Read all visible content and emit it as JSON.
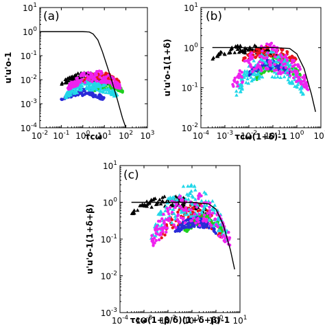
{
  "colors": {
    "black": "#000000",
    "red": "#e8141b",
    "green": "#1fcf1f",
    "blue": "#2a2ad8",
    "cyan": "#22d7e8",
    "magenta": "#ee22ee"
  },
  "chart_data": [
    {
      "type": "scatter",
      "panel_label": "(a)",
      "xscale": "log",
      "yscale": "log",
      "xlim": [
        0.01,
        1000
      ],
      "ylim": [
        0.0001,
        10
      ],
      "x_ticks": [
        "10-2",
        "10-1",
        "100",
        "101",
        "102",
        "103"
      ],
      "y_ticks": [
        "10-4",
        "10-3",
        "10-2",
        "10-1",
        "100",
        "101"
      ],
      "xlabel": "τcω",
      "ylabel": "u'u'o-1",
      "curve": {
        "x": [
          0.01,
          0.1,
          1,
          2,
          3,
          5,
          8,
          12,
          20,
          40,
          70,
          100
        ],
        "y": [
          1,
          1,
          1,
          0.96,
          0.8,
          0.45,
          0.15,
          0.05,
          0.012,
          0.0015,
          0.00025,
          0.0001
        ]
      },
      "series": [
        {
          "color": "black",
          "marker": "triangle",
          "x_range": [
            0.1,
            15
          ],
          "y_range": [
            0.004,
            0.02
          ]
        },
        {
          "color": "red",
          "marker": "circle",
          "x_range": [
            1,
            50
          ],
          "y_range": [
            0.005,
            0.02
          ]
        },
        {
          "color": "green",
          "marker": "circle",
          "x_range": [
            2,
            80
          ],
          "y_range": [
            0.002,
            0.008
          ]
        },
        {
          "color": "blue",
          "marker": "circle",
          "x_range": [
            0.1,
            10
          ],
          "y_range": [
            0.001,
            0.004
          ]
        },
        {
          "color": "cyan",
          "marker": "triangle",
          "x_range": [
            0.15,
            40
          ],
          "y_range": [
            0.001,
            0.01
          ]
        },
        {
          "color": "magenta",
          "marker": "circle",
          "x_range": [
            0.2,
            60
          ],
          "y_range": [
            0.002,
            0.025
          ]
        }
      ]
    },
    {
      "type": "scatter",
      "panel_label": "(b)",
      "xscale": "log",
      "yscale": "log",
      "xlim": [
        0.0001,
        10
      ],
      "ylim": [
        0.01,
        10
      ],
      "x_ticks": [
        "10-4",
        "10-3",
        "10-2",
        "10-1",
        "100",
        "101"
      ],
      "y_ticks": [
        "10-2",
        "10-1",
        "100",
        "101"
      ],
      "xlabel": "τcω(1+δ)-1",
      "ylabel": "u'u'o-1(1+δ)",
      "curve": {
        "x": [
          0.0003,
          0.001,
          0.01,
          0.1,
          0.5,
          1,
          2,
          4,
          6
        ],
        "y": [
          1,
          1,
          1,
          1,
          0.95,
          0.7,
          0.3,
          0.07,
          0.025
        ]
      },
      "series": [
        {
          "color": "black",
          "marker": "triangle",
          "x_range": [
            0.0003,
            0.2
          ],
          "y_range": [
            0.4,
            1.2
          ]
        },
        {
          "color": "red",
          "marker": "circle",
          "x_range": [
            0.005,
            1
          ],
          "y_range": [
            0.3,
            1.1
          ]
        },
        {
          "color": "green",
          "marker": "circle",
          "x_range": [
            0.02,
            1.5
          ],
          "y_range": [
            0.1,
            0.6
          ]
        },
        {
          "color": "blue",
          "marker": "circle",
          "x_range": [
            0.01,
            0.5
          ],
          "y_range": [
            0.15,
            0.5
          ]
        },
        {
          "color": "cyan",
          "marker": "triangle",
          "x_range": [
            0.003,
            2
          ],
          "y_range": [
            0.03,
            0.8
          ]
        },
        {
          "color": "magenta",
          "marker": "circle",
          "x_range": [
            0.002,
            3
          ],
          "y_range": [
            0.03,
            1.3
          ]
        }
      ]
    },
    {
      "type": "scatter",
      "panel_label": "(c)",
      "xscale": "log",
      "yscale": "log",
      "xlim": [
        0.0001,
        10
      ],
      "ylim": [
        0.001,
        10
      ],
      "x_ticks": [
        "10-4",
        "10-3",
        "10-2",
        "10-1",
        "100",
        "101"
      ],
      "y_ticks": [
        "10-3",
        "10-2",
        "10-1",
        "100",
        "101"
      ],
      "xlabel": "τcω(1+β/δ)(1+δ+β)-1",
      "ylabel": "u'u'o-1(1+δ+β)",
      "curve": {
        "x": [
          0.0003,
          0.01,
          0.1,
          0.5,
          1,
          2,
          4,
          6
        ],
        "y": [
          1,
          1,
          1,
          0.9,
          0.65,
          0.25,
          0.05,
          0.015
        ]
      },
      "series": [
        {
          "color": "black",
          "marker": "triangle",
          "x_range": [
            0.0003,
            0.5
          ],
          "y_range": [
            0.3,
            1.5
          ]
        },
        {
          "color": "red",
          "marker": "circle",
          "x_range": [
            0.005,
            2
          ],
          "y_range": [
            0.05,
            1.0
          ]
        },
        {
          "color": "green",
          "marker": "circle",
          "x_range": [
            0.05,
            2
          ],
          "y_range": [
            0.1,
            0.5
          ]
        },
        {
          "color": "blue",
          "marker": "circle",
          "x_range": [
            0.02,
            1
          ],
          "y_range": [
            0.1,
            0.4
          ]
        },
        {
          "color": "cyan",
          "marker": "triangle",
          "x_range": [
            0.002,
            3
          ],
          "y_range": [
            0.03,
            3
          ]
        },
        {
          "color": "magenta",
          "marker": "circle",
          "x_range": [
            0.002,
            4
          ],
          "y_range": [
            0.02,
            2
          ]
        }
      ]
    }
  ]
}
